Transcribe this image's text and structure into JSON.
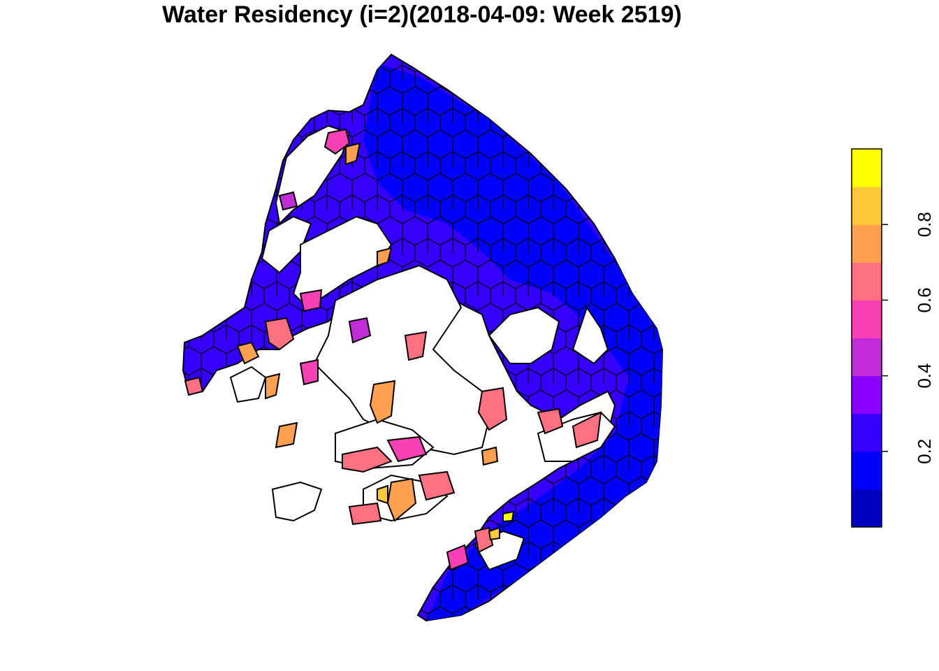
{
  "title": "Water Residency (i=2)(2018-04-09: Week 2519)",
  "legend": {
    "colors": [
      "#0000bf",
      "#0000ff",
      "#3600ff",
      "#8a00ff",
      "#c02cd6",
      "#f640b4",
      "#ff7080",
      "#ffa050",
      "#ffc838",
      "#ffff00"
    ],
    "ticks": [
      {
        "value": 0.2,
        "label": "0.2"
      },
      {
        "value": 0.4,
        "label": "0.4"
      },
      {
        "value": 0.6,
        "label": "0.6"
      },
      {
        "value": 0.8,
        "label": "0.8"
      }
    ],
    "range": [
      0,
      1
    ]
  },
  "map": {
    "background_color": "#3600ff",
    "deep_region_color": "#0000ff",
    "border_color": "#000000"
  }
}
